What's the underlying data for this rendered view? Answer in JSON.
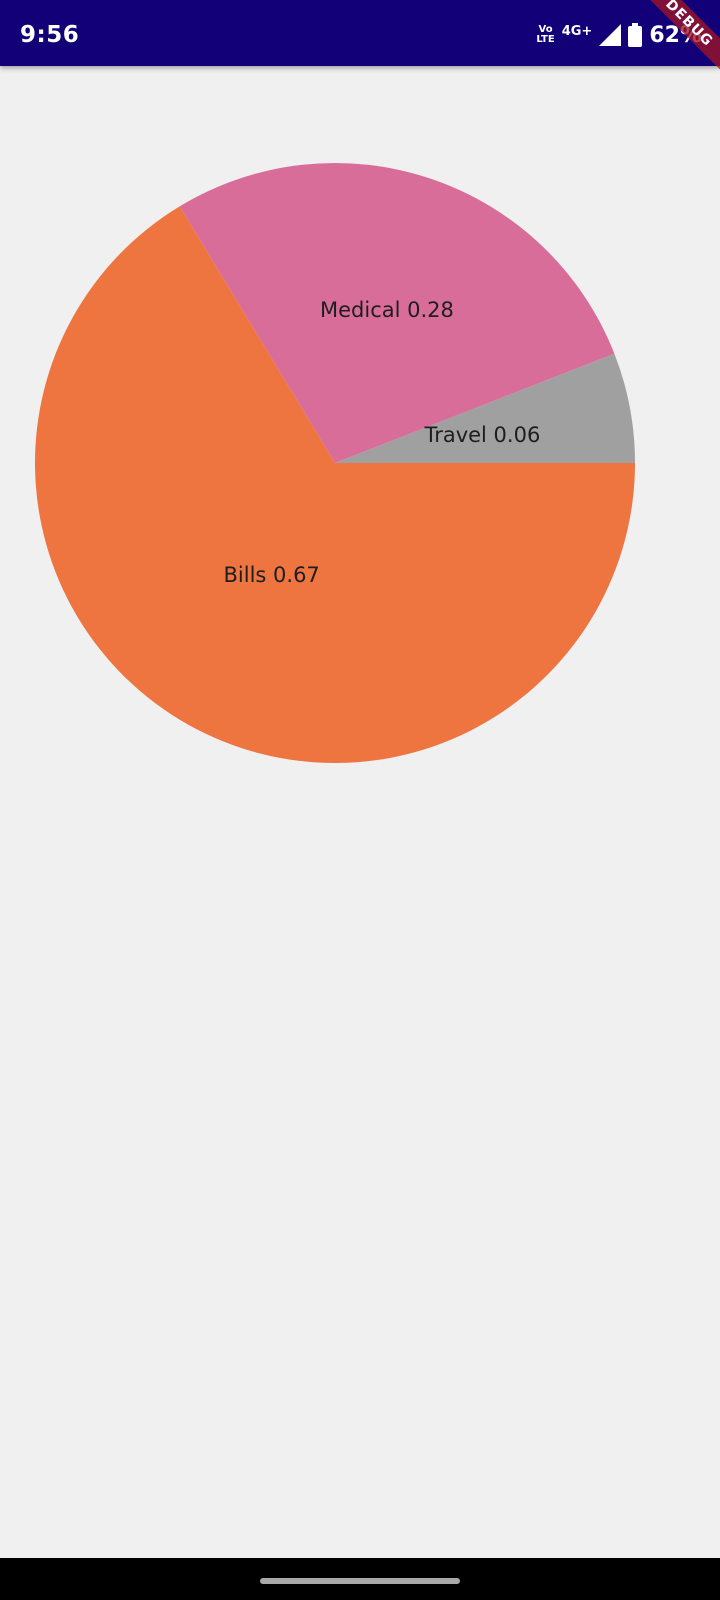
{
  "status_bar": {
    "time": "9:56",
    "volte_top": "Vo",
    "volte_bottom": "LTE",
    "network": "4G+",
    "battery": "62%",
    "background": "#120079"
  },
  "debug_banner": "DEBUG",
  "chart_data": {
    "type": "pie",
    "title": "",
    "categories": [
      "Bills",
      "Medical",
      "Travel"
    ],
    "values": [
      0.67,
      0.28,
      0.06
    ],
    "labels": [
      "Bills 0.67",
      "Medical 0.28",
      "Travel 0.06"
    ],
    "colors": [
      "#ee7440",
      "#d96d9a",
      "#a0a0a0"
    ]
  },
  "colors": {
    "background": "#f0f0f0",
    "nav_bar": "#000000"
  }
}
